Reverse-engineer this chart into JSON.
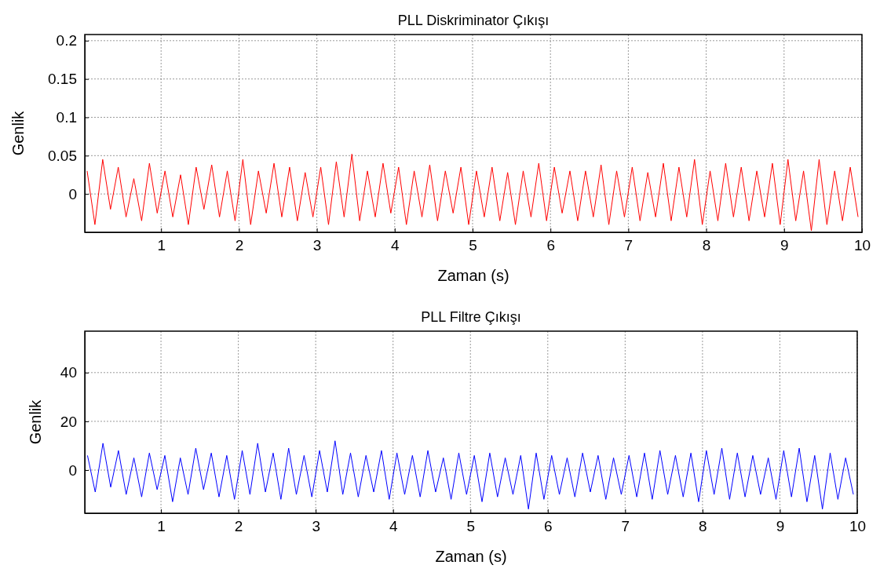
{
  "chart_data": [
    {
      "type": "line",
      "title": "PLL Diskriminator Çıkışı",
      "xlabel": "Zaman (s)",
      "ylabel": "Genlik",
      "xlim": [
        0.02,
        10
      ],
      "xticks": [
        1,
        2,
        3,
        4,
        5,
        6,
        7,
        8,
        9,
        10
      ],
      "ylim": [
        -0.05,
        0.208
      ],
      "yticks": [
        0,
        0.05,
        0.1,
        0.15,
        0.2
      ],
      "grid": true,
      "series": [
        {
          "color": "#ff0000",
          "values": [
            0.03,
            -0.04,
            0.045,
            -0.02,
            0.035,
            -0.03,
            0.02,
            -0.035,
            0.04,
            -0.025,
            0.03,
            -0.03,
            0.025,
            -0.04,
            0.035,
            -0.02,
            0.038,
            -0.03,
            0.03,
            -0.035,
            0.045,
            -0.04,
            0.03,
            -0.025,
            0.04,
            -0.03,
            0.035,
            -0.035,
            0.028,
            -0.03,
            0.035,
            -0.04,
            0.042,
            -0.03,
            0.052,
            -0.035,
            0.03,
            -0.03,
            0.04,
            -0.025,
            0.035,
            -0.04,
            0.03,
            -0.03,
            0.038,
            -0.035,
            0.03,
            -0.025,
            0.035,
            -0.04,
            0.03,
            -0.03,
            0.035,
            -0.035,
            0.028,
            -0.04,
            0.03,
            -0.03,
            0.04,
            -0.035,
            0.035,
            -0.025,
            0.03,
            -0.035,
            0.03,
            -0.03,
            0.038,
            -0.04,
            0.03,
            -0.03,
            0.035,
            -0.035,
            0.028,
            -0.03,
            0.04,
            -0.035,
            0.035,
            -0.03,
            0.045,
            -0.04,
            0.03,
            -0.035,
            0.04,
            -0.03,
            0.035,
            -0.035,
            0.03,
            -0.03,
            0.04,
            -0.04,
            0.045,
            -0.035,
            0.03,
            -0.048,
            0.045,
            -0.04,
            0.03,
            -0.035,
            0.035,
            -0.03
          ],
          "x": [
            0.05,
            0.15,
            0.25,
            0.35,
            0.45,
            0.55,
            0.65,
            0.75,
            0.85,
            0.95,
            1.05,
            1.15,
            1.25,
            1.35,
            1.45,
            1.55,
            1.65,
            1.75,
            1.85,
            1.95,
            2.05,
            2.15,
            2.25,
            2.35,
            2.45,
            2.55,
            2.65,
            2.75,
            2.85,
            2.95,
            3.05,
            3.15,
            3.25,
            3.35,
            3.45,
            3.55,
            3.65,
            3.75,
            3.85,
            3.95,
            4.05,
            4.15,
            4.25,
            4.35,
            4.45,
            4.55,
            4.65,
            4.75,
            4.85,
            4.95,
            5.05,
            5.15,
            5.25,
            5.35,
            5.45,
            5.55,
            5.65,
            5.75,
            5.85,
            5.95,
            6.05,
            6.15,
            6.25,
            6.35,
            6.45,
            6.55,
            6.65,
            6.75,
            6.85,
            6.95,
            7.05,
            7.15,
            7.25,
            7.35,
            7.45,
            7.55,
            7.65,
            7.75,
            7.85,
            7.95,
            8.05,
            8.15,
            8.25,
            8.35,
            8.45,
            8.55,
            8.65,
            8.75,
            8.85,
            8.95,
            9.05,
            9.15,
            9.25,
            9.35,
            9.45,
            9.55,
            9.65,
            9.75,
            9.85,
            9.95
          ]
        }
      ]
    },
    {
      "type": "line",
      "title": "PLL Filtre Çıkışı",
      "xlabel": "Zaman (s)",
      "ylabel": "Genlik",
      "xlim": [
        0.015,
        10
      ],
      "xticks": [
        1,
        2,
        3,
        4,
        5,
        6,
        7,
        8,
        9,
        10
      ],
      "ylim": [
        -17.7,
        57
      ],
      "yticks": [
        0,
        20,
        40
      ],
      "grid": true,
      "series": [
        {
          "color": "#0000ff",
          "values": [
            6,
            -9,
            11,
            -7,
            8,
            -10,
            5,
            -11,
            7,
            -8,
            6,
            -13,
            5,
            -10,
            9,
            -8,
            7,
            -11,
            6,
            -12,
            8,
            -10,
            11,
            -9,
            7,
            -12,
            9,
            -10,
            6,
            -11,
            8,
            -9,
            12,
            -10,
            7,
            -11,
            6,
            -9,
            8,
            -12,
            7,
            -10,
            6,
            -11,
            8,
            -9,
            5,
            -12,
            7,
            -10,
            6,
            -13,
            7,
            -11,
            5,
            -10,
            6,
            -16,
            7,
            -12,
            6,
            -10,
            5,
            -11,
            7,
            -9,
            6,
            -12,
            5,
            -10,
            6,
            -11,
            7,
            -12,
            8,
            -10,
            6,
            -11,
            7,
            -13,
            8,
            -10,
            9,
            -12,
            7,
            -11,
            6,
            -10,
            5,
            -12,
            8,
            -11,
            9,
            -13,
            6,
            -16,
            7,
            -12,
            5,
            -10
          ],
          "x": [
            0.05,
            0.15,
            0.25,
            0.35,
            0.45,
            0.55,
            0.65,
            0.75,
            0.85,
            0.95,
            1.05,
            1.15,
            1.25,
            1.35,
            1.45,
            1.55,
            1.65,
            1.75,
            1.85,
            1.95,
            2.05,
            2.15,
            2.25,
            2.35,
            2.45,
            2.55,
            2.65,
            2.75,
            2.85,
            2.95,
            3.05,
            3.15,
            3.25,
            3.35,
            3.45,
            3.55,
            3.65,
            3.75,
            3.85,
            3.95,
            4.05,
            4.15,
            4.25,
            4.35,
            4.45,
            4.55,
            4.65,
            4.75,
            4.85,
            4.95,
            5.05,
            5.15,
            5.25,
            5.35,
            5.45,
            5.55,
            5.65,
            5.75,
            5.85,
            5.95,
            6.05,
            6.15,
            6.25,
            6.35,
            6.45,
            6.55,
            6.65,
            6.75,
            6.85,
            6.95,
            7.05,
            7.15,
            7.25,
            7.35,
            7.45,
            7.55,
            7.65,
            7.75,
            7.85,
            7.95,
            8.05,
            8.15,
            8.25,
            8.35,
            8.45,
            8.55,
            8.65,
            8.75,
            8.85,
            8.95,
            9.05,
            9.15,
            9.25,
            9.35,
            9.45,
            9.55,
            9.65,
            9.75,
            9.85,
            9.95
          ]
        }
      ]
    }
  ]
}
